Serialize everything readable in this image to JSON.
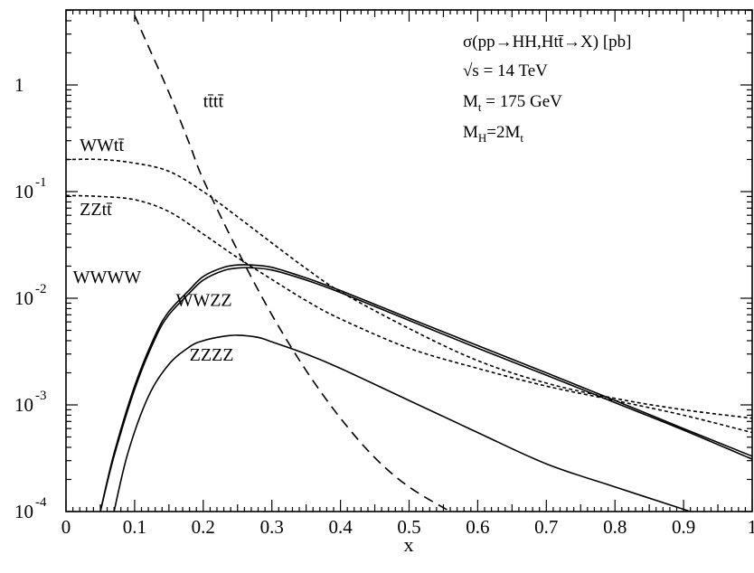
{
  "chart_data": {
    "type": "line",
    "xlabel": "x",
    "ylabel": "",
    "xlim": [
      0,
      1
    ],
    "ylim": [
      0.0001,
      5
    ],
    "yscale": "log",
    "grid": false,
    "x_tick_labels": [
      "0",
      "0.1",
      "0.2",
      "0.3",
      "0.4",
      "0.5",
      "0.6",
      "0.7",
      "0.8",
      "0.9",
      "1"
    ],
    "y_tick_labels": [
      {
        "value": 1,
        "base": "1",
        "exp": ""
      },
      {
        "value": 0.1,
        "base": "10",
        "exp": "-1"
      },
      {
        "value": 0.01,
        "base": "10",
        "exp": "-2"
      },
      {
        "value": 0.001,
        "base": "10",
        "exp": "-3"
      },
      {
        "value": 0.0001,
        "base": "10",
        "exp": "-4"
      }
    ],
    "annotations": {
      "line1": "σ(pp→HH,Htt̄→X) [pb]",
      "line2": "√s = 14 TeV",
      "line3_main": "M",
      "line3_sub": "t",
      "line3_rest": " = 175 GeV",
      "line4_main": "M",
      "line4_sub": "H",
      "line4_mid": "=2M",
      "line4_sub2": "t"
    },
    "series": [
      {
        "name": "tt̄tt̄",
        "style": "long-dash",
        "label_x": 0.2,
        "label_y": 0.62,
        "x": [
          0.1,
          0.12,
          0.15,
          0.18,
          0.2,
          0.25,
          0.3,
          0.35,
          0.4,
          0.45,
          0.5,
          0.56
        ],
        "y": [
          4.5,
          2.3,
          0.85,
          0.28,
          0.13,
          0.028,
          0.007,
          0.0021,
          0.00075,
          0.00032,
          0.00017,
          0.0001
        ]
      },
      {
        "name": "WWtt̄",
        "style": "dotted",
        "label_x": 0.02,
        "label_y": 0.24,
        "x": [
          0.0,
          0.05,
          0.1,
          0.15,
          0.2,
          0.25,
          0.3,
          0.35,
          0.4,
          0.5,
          0.6,
          0.7,
          0.8,
          0.9,
          1.0
        ],
        "y": [
          0.2,
          0.2,
          0.185,
          0.155,
          0.1,
          0.058,
          0.033,
          0.019,
          0.0115,
          0.0052,
          0.0026,
          0.0016,
          0.00115,
          0.0009,
          0.00075
        ]
      },
      {
        "name": "ZZtt̄",
        "style": "dotted",
        "label_x": 0.02,
        "label_y": 0.06,
        "x": [
          0.0,
          0.05,
          0.1,
          0.15,
          0.2,
          0.25,
          0.3,
          0.35,
          0.4,
          0.5,
          0.6,
          0.7,
          0.8,
          0.9,
          1.0
        ],
        "y": [
          0.092,
          0.09,
          0.084,
          0.065,
          0.04,
          0.024,
          0.015,
          0.0095,
          0.0064,
          0.0034,
          0.0022,
          0.0015,
          0.0011,
          0.0008,
          0.00055
        ]
      },
      {
        "name": "WWWW",
        "style": "solid",
        "label_x": 0.01,
        "label_y": 0.014,
        "x": [
          0.05,
          0.07,
          0.1,
          0.13,
          0.15,
          0.18,
          0.2,
          0.23,
          0.25,
          0.27,
          0.3,
          0.35,
          0.4,
          0.5,
          0.6,
          0.7,
          0.8,
          0.9,
          1.0
        ],
        "y": [
          0.0001,
          0.00035,
          0.0015,
          0.0045,
          0.0075,
          0.012,
          0.016,
          0.0195,
          0.0205,
          0.0205,
          0.0195,
          0.0155,
          0.0118,
          0.0065,
          0.0036,
          0.002,
          0.0011,
          0.0006,
          0.00033
        ]
      },
      {
        "name": "WWZZ",
        "style": "solid",
        "label_x": 0.16,
        "label_y": 0.0085,
        "x": [
          0.05,
          0.07,
          0.1,
          0.13,
          0.15,
          0.18,
          0.2,
          0.23,
          0.25,
          0.27,
          0.3,
          0.35,
          0.4,
          0.5,
          0.6,
          0.7,
          0.8,
          0.9,
          1.0
        ],
        "y": [
          0.0001,
          0.00033,
          0.0014,
          0.0042,
          0.007,
          0.0112,
          0.0148,
          0.0182,
          0.0192,
          0.0193,
          0.0184,
          0.0148,
          0.0113,
          0.0062,
          0.0034,
          0.0019,
          0.00105,
          0.00058,
          0.00031
        ]
      },
      {
        "name": "ZZZZ",
        "style": "solid",
        "label_x": 0.18,
        "label_y": 0.0026,
        "x": [
          0.07,
          0.09,
          0.12,
          0.15,
          0.18,
          0.2,
          0.23,
          0.25,
          0.28,
          0.3,
          0.35,
          0.4,
          0.5,
          0.6,
          0.7,
          0.8,
          0.9,
          0.95
        ],
        "y": [
          0.0001,
          0.00035,
          0.0012,
          0.0024,
          0.0035,
          0.004,
          0.0044,
          0.0045,
          0.0043,
          0.0039,
          0.003,
          0.0022,
          0.0011,
          0.00055,
          0.00028,
          0.00017,
          0.000105,
          8e-05
        ]
      }
    ]
  }
}
